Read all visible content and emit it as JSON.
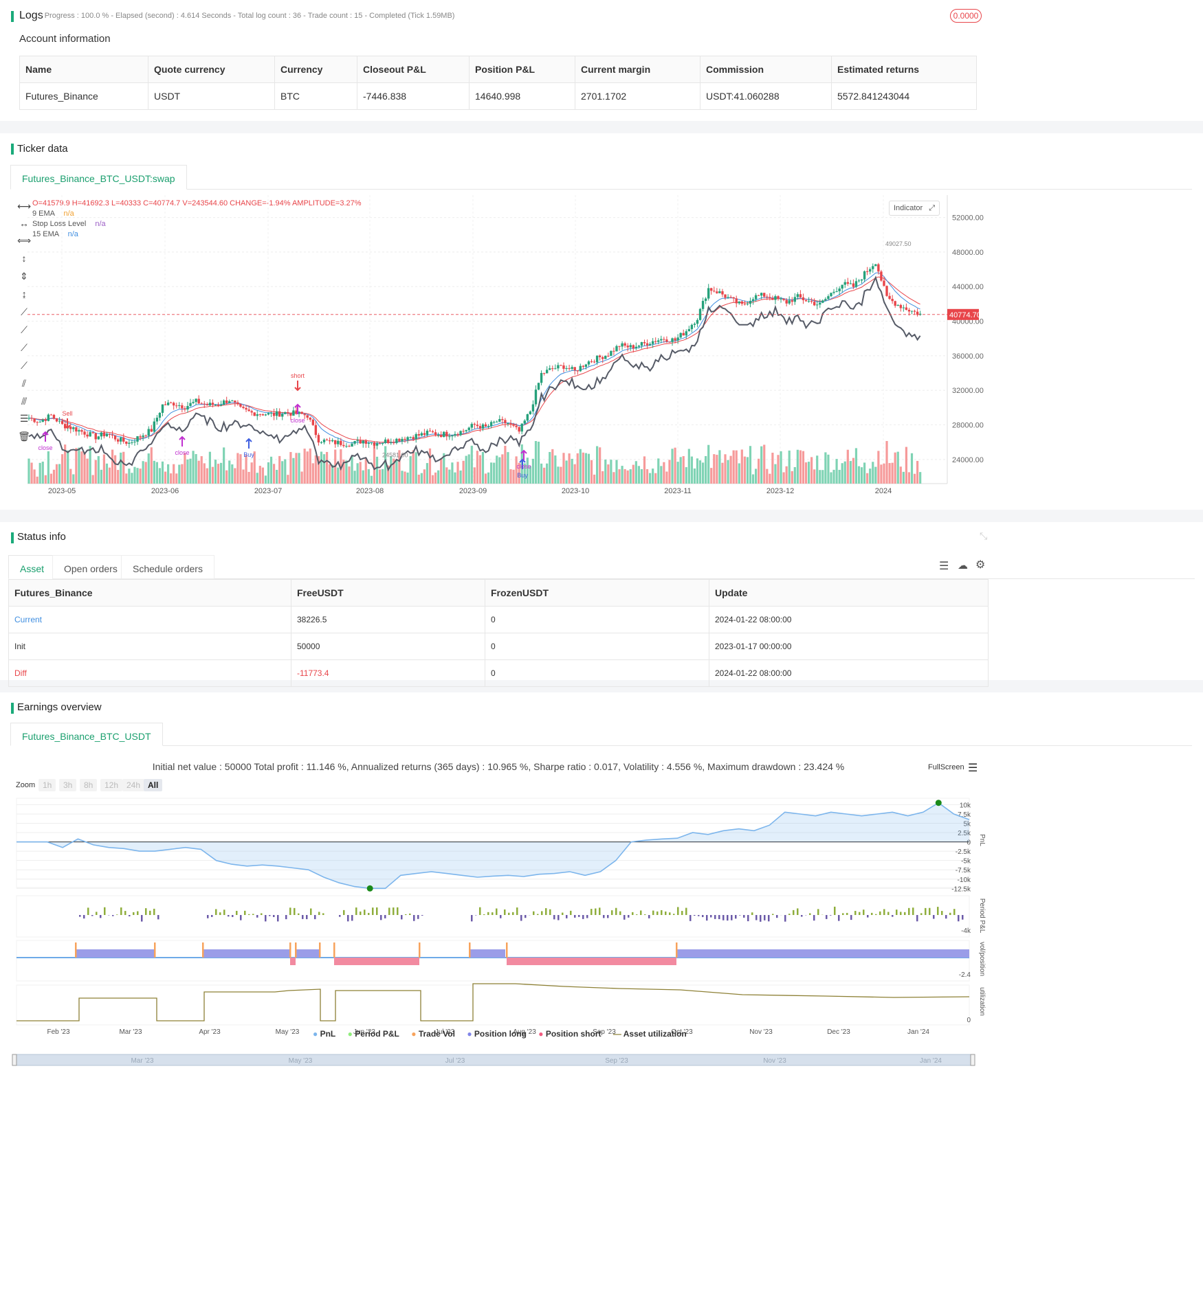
{
  "logs": {
    "title": "Logs",
    "summary": "- Progress : 100.0 % - Elapsed (second) : 4.614  Seconds - Total log count : 36 - Trade count : 15 - Completed (Tick 1.59MB)",
    "badge": "0.0000"
  },
  "account": {
    "title": "Account information",
    "headers": [
      "Name",
      "Quote currency",
      "Currency",
      "Closeout P&L",
      "Position P&L",
      "Current margin",
      "Commission",
      "Estimated returns"
    ],
    "row": [
      "Futures_Binance",
      "USDT",
      "BTC",
      "-7446.838",
      "14640.998",
      "2701.1702",
      "USDT:41.060288",
      "5572.841243044"
    ]
  },
  "ticker": {
    "title": "Ticker data",
    "tab": "Futures_Binance_BTC_USDT:swap",
    "ohlc": "O=41579.9 H=41692.3 L=40333 C=40774.7 V=243544.60 CHANGE=-1.94% AMPLITUDE=3.27%",
    "legend": [
      {
        "name": "9 EMA",
        "value": "n/a",
        "color": "#f0a030"
      },
      {
        "name": "Stop Loss Level",
        "value": "n/a",
        "color": "#9c5fc6"
      },
      {
        "name": "15 EMA",
        "value": "n/a",
        "color": "#3f8ee0"
      }
    ],
    "indicator_btn": "Indicator",
    "price_tag": "40774.70",
    "high_label": "49027.50",
    "low_label": "24581.00"
  },
  "chart_data": [
    {
      "type": "candlestick",
      "title": "",
      "x_ticks": [
        "2023-05",
        "2023-06",
        "2023-07",
        "2023-08",
        "2023-09",
        "2023-10",
        "2023-11",
        "2023-12",
        "2024"
      ],
      "y_ticks": [
        "52000.00",
        "48000.00",
        "44000.00",
        "40000.00",
        "36000.00",
        "32000.00",
        "28000.00",
        "24000.00"
      ],
      "ylim": [
        22000,
        53000
      ],
      "close_path": [
        [
          0,
          28800
        ],
        [
          4,
          28400
        ],
        [
          8,
          29100
        ],
        [
          12,
          28000
        ],
        [
          16,
          27600
        ],
        [
          20,
          27100
        ],
        [
          24,
          26600
        ],
        [
          28,
          27000
        ],
        [
          32,
          26300
        ],
        [
          36,
          25900
        ],
        [
          40,
          26700
        ],
        [
          44,
          27400
        ],
        [
          48,
          30300
        ],
        [
          52,
          30500
        ],
        [
          56,
          30100
        ],
        [
          60,
          30700
        ],
        [
          64,
          30300
        ],
        [
          68,
          30400
        ],
        [
          72,
          30900
        ],
        [
          76,
          29800
        ],
        [
          80,
          29400
        ],
        [
          84,
          29300
        ],
        [
          88,
          29200
        ],
        [
          92,
          29400
        ],
        [
          96,
          29300
        ],
        [
          100,
          29100
        ],
        [
          104,
          26300
        ],
        [
          108,
          26000
        ],
        [
          112,
          25900
        ],
        [
          116,
          25800
        ],
        [
          120,
          26200
        ],
        [
          124,
          25900
        ],
        [
          128,
          26100
        ],
        [
          132,
          26300
        ],
        [
          136,
          26600
        ],
        [
          140,
          26800
        ],
        [
          144,
          27100
        ],
        [
          148,
          26900
        ],
        [
          152,
          27000
        ],
        [
          156,
          27300
        ],
        [
          160,
          28000
        ],
        [
          164,
          27700
        ],
        [
          168,
          28400
        ],
        [
          172,
          28200
        ],
        [
          176,
          27200
        ],
        [
          180,
          29600
        ],
        [
          184,
          33900
        ],
        [
          188,
          34500
        ],
        [
          192,
          34800
        ],
        [
          196,
          34200
        ],
        [
          200,
          35200
        ],
        [
          204,
          35700
        ],
        [
          208,
          36200
        ],
        [
          212,
          37200
        ],
        [
          216,
          37000
        ],
        [
          220,
          37300
        ],
        [
          224,
          37700
        ],
        [
          228,
          38000
        ],
        [
          232,
          37800
        ],
        [
          236,
          38900
        ],
        [
          240,
          40400
        ],
        [
          244,
          43800
        ],
        [
          248,
          43300
        ],
        [
          252,
          42500
        ],
        [
          256,
          41800
        ],
        [
          260,
          42800
        ],
        [
          264,
          43000
        ],
        [
          268,
          42600
        ],
        [
          272,
          42200
        ],
        [
          276,
          42800
        ],
        [
          280,
          42300
        ],
        [
          284,
          41900
        ],
        [
          288,
          43200
        ],
        [
          292,
          44300
        ],
        [
          296,
          44000
        ],
        [
          300,
          45500
        ],
        [
          304,
          46900
        ],
        [
          308,
          42700
        ],
        [
          312,
          41900
        ],
        [
          316,
          41300
        ],
        [
          320,
          40800
        ]
      ],
      "volume_ticks": [
        "24581.00"
      ]
    },
    {
      "type": "line",
      "title": "",
      "series": [
        {
          "name": "PnL",
          "values": [
            0,
            0,
            0,
            -1500,
            800,
            -800,
            -1500,
            -1800,
            -2500,
            -2500,
            -2000,
            -1500,
            -2000,
            -5000,
            -6000,
            -6500,
            -6200,
            -6500,
            -7000,
            -7500,
            -9500,
            -11000,
            -12000,
            -12500,
            -12500,
            -9000,
            -8500,
            -8000,
            -8500,
            -9000,
            -9500,
            -9200,
            -9000,
            -9300,
            -8700,
            -8500,
            -8000,
            -9000,
            -8000,
            -5000,
            0,
            500,
            800,
            1000,
            2500,
            2000,
            3000,
            3500,
            3000,
            4500,
            8000,
            7500,
            7000,
            8000,
            7500,
            7000,
            7500,
            8000,
            7000,
            8000,
            10500,
            7500,
            6000
          ]
        }
      ],
      "y_ticks": [
        "10k",
        "7.5k",
        "5k",
        "2.5k",
        "0",
        "-2.5k",
        "-5k",
        "-7.5k",
        "-10k",
        "-12.5k"
      ],
      "x_ticks": [
        "Feb '23",
        "Mar '23",
        "Apr '23",
        "May '23",
        "Jun '23",
        "Jul '23",
        "Aug '23",
        "Sep '23",
        "Oct '23",
        "Nov '23",
        "Dec '23",
        "Jan '24"
      ]
    }
  ],
  "status": {
    "title": "Status info",
    "tabs": [
      "Asset",
      "Open orders",
      "Schedule orders"
    ],
    "headers": [
      "Futures_Binance",
      "FreeUSDT",
      "FrozenUSDT",
      "Update"
    ],
    "rows": [
      [
        "Current",
        "38226.5",
        "0",
        "2024-01-22 08:00:00"
      ],
      [
        "Init",
        "50000",
        "0",
        "2023-01-17 00:00:00"
      ],
      [
        "Diff",
        "-11773.4",
        "0",
        "2024-01-22 08:00:00"
      ]
    ]
  },
  "earnings": {
    "title": "Earnings overview",
    "tab": "Futures_Binance_BTC_USDT",
    "summary": "Initial net value : 50000 Total profit : 11.146 %, Annualized returns (365 days) : 10.965 %, Sharpe ratio : 0.017, Volatility : 4.556 %, Maximum drawdown : 23.424 %",
    "fullscreen": "FullScreen",
    "zoom_label": "Zoom",
    "zoom_options": [
      "1h",
      "3h",
      "8h",
      "12h",
      "24h",
      "All"
    ],
    "period_tick": "-4k",
    "vol_tick": "-2.4",
    "util_tick": "0",
    "axis_titles": [
      "PnL",
      "Period P&L",
      "vol/position",
      "utilization"
    ],
    "legend": [
      {
        "name": "PnL",
        "color": "#7cb5ec"
      },
      {
        "name": "Period P&L",
        "color": "#90ed7d"
      },
      {
        "name": "Trade Vol",
        "color": "#f7a35c"
      },
      {
        "name": "Position long",
        "color": "#8085e9"
      },
      {
        "name": "Position short",
        "color": "#f15c80"
      },
      {
        "name": "Asset utilization",
        "color": "#8d8035"
      }
    ],
    "navigator_ticks": [
      "Mar '23",
      "May '23",
      "Jul '23",
      "Sep '23",
      "Nov '23",
      "Jan '24"
    ]
  }
}
